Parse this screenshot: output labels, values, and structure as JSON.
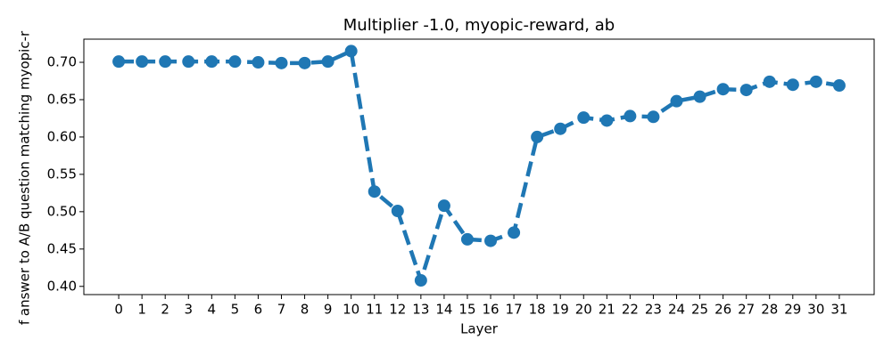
{
  "chart_data": {
    "type": "line",
    "title": "Multiplier -1.0, myopic-reward, ab",
    "xlabel": "Layer",
    "ylabel": "f answer to A/B question matching myopic-r",
    "x": [
      0,
      1,
      2,
      3,
      4,
      5,
      6,
      7,
      8,
      9,
      10,
      11,
      12,
      13,
      14,
      15,
      16,
      17,
      18,
      19,
      20,
      21,
      22,
      23,
      24,
      25,
      26,
      27,
      28,
      29,
      30,
      31
    ],
    "series": [
      {
        "color": "#1f77b4",
        "values": [
          0.701,
          0.701,
          0.701,
          0.701,
          0.701,
          0.701,
          0.7,
          0.699,
          0.699,
          0.701,
          0.715,
          0.527,
          0.501,
          0.408,
          0.508,
          0.463,
          0.461,
          0.472,
          0.6,
          0.611,
          0.626,
          0.622,
          0.628,
          0.627,
          0.648,
          0.654,
          0.664,
          0.663,
          0.674,
          0.67,
          0.674,
          0.669
        ]
      }
    ],
    "xlim": [
      -1.5,
      32.5
    ],
    "xticks": [
      0,
      1,
      2,
      3,
      4,
      5,
      6,
      7,
      8,
      9,
      10,
      11,
      12,
      13,
      14,
      15,
      16,
      17,
      18,
      19,
      20,
      21,
      22,
      23,
      24,
      25,
      26,
      27,
      28,
      29,
      30,
      31
    ],
    "ylim": [
      0.389,
      0.731
    ],
    "yticks": [
      {
        "value": 0.4,
        "label": "0.40"
      },
      0.45,
      {
        "value": 0.5,
        "label": "0.50"
      },
      0.55,
      {
        "value": 0.6,
        "label": "0.60"
      },
      0.65,
      {
        "value": 0.7,
        "label": "0.70"
      }
    ],
    "linestyle": "dashed"
  }
}
